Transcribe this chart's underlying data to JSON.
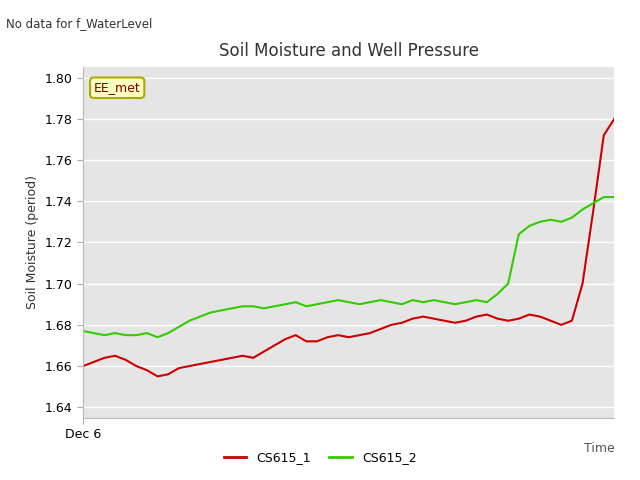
{
  "title": "Soil Moisture and Well Pressure",
  "ylabel": "Soil Moisture (period)",
  "no_data_label": "No data for f_WaterLevel",
  "legend_label": "EE_met",
  "ylim": [
    1.635,
    1.805
  ],
  "yticks": [
    1.64,
    1.66,
    1.68,
    1.7,
    1.72,
    1.74,
    1.76,
    1.78,
    1.8
  ],
  "background_color": "#e5e5e5",
  "cs615_1_color": "#cc0000",
  "cs615_2_color": "#33cc00",
  "cs615_1_x": [
    0,
    1,
    2,
    3,
    4,
    5,
    6,
    7,
    8,
    9,
    10,
    11,
    12,
    13,
    14,
    15,
    16,
    17,
    18,
    19,
    20,
    21,
    22,
    23,
    24,
    25,
    26,
    27,
    28,
    29,
    30,
    31,
    32,
    33,
    34,
    35,
    36,
    37,
    38,
    39,
    40,
    41,
    42,
    43,
    44,
    45,
    46,
    47,
    48,
    49,
    50
  ],
  "cs615_1_y": [
    1.66,
    1.662,
    1.664,
    1.665,
    1.663,
    1.66,
    1.658,
    1.655,
    1.656,
    1.659,
    1.66,
    1.661,
    1.662,
    1.663,
    1.664,
    1.665,
    1.664,
    1.667,
    1.67,
    1.673,
    1.675,
    1.672,
    1.672,
    1.674,
    1.675,
    1.674,
    1.675,
    1.676,
    1.678,
    1.68,
    1.681,
    1.683,
    1.684,
    1.683,
    1.682,
    1.681,
    1.682,
    1.684,
    1.685,
    1.683,
    1.682,
    1.683,
    1.685,
    1.684,
    1.682,
    1.68,
    1.682,
    1.7,
    1.735,
    1.772,
    1.78
  ],
  "cs615_2_x": [
    0,
    1,
    2,
    3,
    4,
    5,
    6,
    7,
    8,
    9,
    10,
    11,
    12,
    13,
    14,
    15,
    16,
    17,
    18,
    19,
    20,
    21,
    22,
    23,
    24,
    25,
    26,
    27,
    28,
    29,
    30,
    31,
    32,
    33,
    34,
    35,
    36,
    37,
    38,
    39,
    40,
    41,
    42,
    43,
    44,
    45,
    46,
    47,
    48,
    49,
    50
  ],
  "cs615_2_y": [
    1.677,
    1.676,
    1.675,
    1.676,
    1.675,
    1.675,
    1.676,
    1.674,
    1.676,
    1.679,
    1.682,
    1.684,
    1.686,
    1.687,
    1.688,
    1.689,
    1.689,
    1.688,
    1.689,
    1.69,
    1.691,
    1.689,
    1.69,
    1.691,
    1.692,
    1.691,
    1.69,
    1.691,
    1.692,
    1.691,
    1.69,
    1.692,
    1.691,
    1.692,
    1.691,
    1.69,
    1.691,
    1.692,
    1.691,
    1.695,
    1.7,
    1.724,
    1.728,
    1.73,
    1.731,
    1.73,
    1.732,
    1.736,
    1.739,
    1.742,
    1.742
  ]
}
